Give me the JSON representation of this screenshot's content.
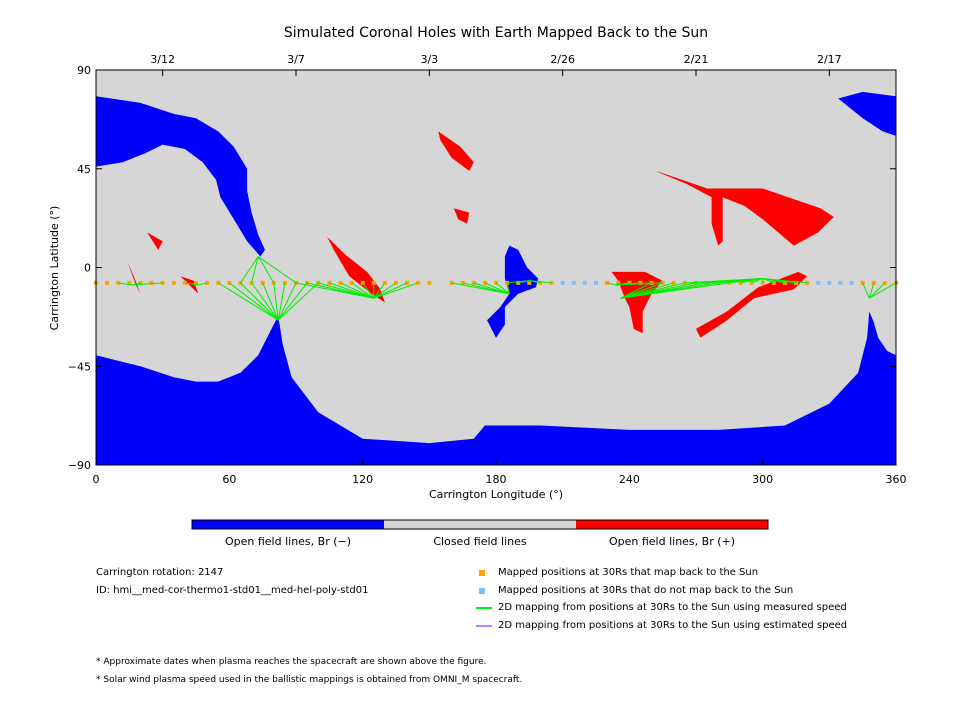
{
  "chart_data": {
    "type": "map",
    "title": "Simulated Coronal Holes with Earth Mapped Back to the Sun",
    "xlabel": "Carrington Longitude (°)",
    "ylabel": "Carrington Latitude (°)",
    "xlim": [
      0,
      360
    ],
    "ylim": [
      -90,
      90
    ],
    "x_ticks": [
      "0",
      "60",
      "120",
      "180",
      "240",
      "300",
      "360"
    ],
    "y_ticks": [
      "90",
      "45",
      "0",
      "−45",
      "−90"
    ],
    "top_axis": {
      "dates": [
        {
          "label": "3/12",
          "lon": 30
        },
        {
          "label": "3/7",
          "lon": 90
        },
        {
          "label": "3/3",
          "lon": 150
        },
        {
          "label": "2/26",
          "lon": 210
        },
        {
          "label": "2/21",
          "lon": 270
        },
        {
          "label": "2/17",
          "lon": 330
        }
      ]
    },
    "colorbar": [
      {
        "label": "Open field lines, Br (−)",
        "color": "#0000ff"
      },
      {
        "label": "Closed field lines",
        "color": "#d6d6d6"
      },
      {
        "label": "Open field lines, Br (+)",
        "color": "#ff0000"
      }
    ],
    "regions": {
      "negative_open": [
        [
          [
            0,
            78
          ],
          [
            20,
            75
          ],
          [
            35,
            70
          ],
          [
            45,
            68
          ],
          [
            55,
            62
          ],
          [
            62,
            55
          ],
          [
            68,
            45
          ],
          [
            68,
            35
          ],
          [
            70,
            25
          ],
          [
            73,
            15
          ],
          [
            76,
            8
          ],
          [
            74,
            5
          ],
          [
            68,
            12
          ],
          [
            62,
            22
          ],
          [
            56,
            32
          ],
          [
            54,
            40
          ],
          [
            48,
            48
          ],
          [
            40,
            54
          ],
          [
            30,
            56
          ],
          [
            22,
            52
          ],
          [
            12,
            48
          ],
          [
            0,
            46
          ]
        ],
        [
          [
            0,
            -40
          ],
          [
            20,
            -45
          ],
          [
            35,
            -50
          ],
          [
            45,
            -52
          ],
          [
            55,
            -52
          ],
          [
            65,
            -48
          ],
          [
            73,
            -40
          ],
          [
            78,
            -30
          ],
          [
            82,
            -22
          ],
          [
            84,
            -35
          ],
          [
            88,
            -50
          ],
          [
            100,
            -66
          ],
          [
            120,
            -78
          ],
          [
            150,
            -80
          ],
          [
            170,
            -78
          ],
          [
            175,
            -72
          ],
          [
            200,
            -72
          ],
          [
            240,
            -74
          ],
          [
            280,
            -74
          ],
          [
            310,
            -72
          ],
          [
            330,
            -62
          ],
          [
            343,
            -48
          ],
          [
            347,
            -32
          ],
          [
            348,
            -20
          ],
          [
            350,
            -25
          ],
          [
            352,
            -32
          ],
          [
            356,
            -38
          ],
          [
            360,
            -40
          ],
          [
            360,
            -90
          ],
          [
            0,
            -90
          ]
        ],
        [
          [
            180,
            -32
          ],
          [
            176,
            -24
          ],
          [
            182,
            -18
          ],
          [
            186,
            -12
          ],
          [
            184,
            -5
          ],
          [
            184,
            5
          ],
          [
            186,
            10
          ],
          [
            190,
            8
          ],
          [
            194,
            0
          ],
          [
            199,
            -5
          ],
          [
            198,
            -9
          ],
          [
            190,
            -12
          ],
          [
            184,
            -18
          ],
          [
            184,
            -26
          ]
        ],
        [
          [
            334,
            77
          ],
          [
            345,
            80
          ],
          [
            360,
            78
          ],
          [
            360,
            60
          ],
          [
            354,
            62
          ],
          [
            345,
            68
          ]
        ]
      ],
      "positive_open": [
        [
          [
            154,
            62
          ],
          [
            164,
            55
          ],
          [
            170,
            48
          ],
          [
            168,
            44
          ],
          [
            160,
            50
          ],
          [
            155,
            58
          ]
        ],
        [
          [
            161,
            27
          ],
          [
            168,
            25
          ],
          [
            167,
            20
          ],
          [
            163,
            22
          ]
        ],
        [
          [
            252,
            44
          ],
          [
            275,
            36
          ],
          [
            300,
            36
          ],
          [
            326,
            27
          ],
          [
            332,
            23
          ],
          [
            325,
            16
          ],
          [
            314,
            10
          ],
          [
            300,
            22
          ],
          [
            292,
            28
          ],
          [
            282,
            32
          ],
          [
            282,
            22
          ],
          [
            282,
            12
          ],
          [
            280,
            10
          ],
          [
            277,
            20
          ],
          [
            277,
            32
          ],
          [
            266,
            38
          ],
          [
            254,
            43
          ]
        ],
        [
          [
            104,
            14
          ],
          [
            112,
            6
          ],
          [
            122,
            -2
          ],
          [
            128,
            -10
          ],
          [
            130,
            -16
          ],
          [
            124,
            -12
          ],
          [
            114,
            -4
          ],
          [
            107,
            8
          ]
        ],
        [
          [
            232,
            -2
          ],
          [
            235,
            -6
          ],
          [
            238,
            -14
          ],
          [
            240,
            -18
          ],
          [
            242,
            -28
          ],
          [
            246,
            -30
          ],
          [
            246,
            -20
          ],
          [
            250,
            -12
          ],
          [
            255,
            -6
          ],
          [
            247,
            -2
          ],
          [
            240,
            -2
          ]
        ],
        [
          [
            298,
            -9
          ],
          [
            316,
            -2
          ],
          [
            320,
            -4
          ],
          [
            314,
            -10
          ],
          [
            296,
            -14
          ],
          [
            284,
            -24
          ],
          [
            272,
            -32
          ],
          [
            270,
            -28
          ],
          [
            284,
            -20
          ]
        ],
        [
          [
            23,
            16
          ],
          [
            28,
            8
          ],
          [
            30,
            12
          ]
        ],
        [
          [
            14,
            3
          ],
          [
            17,
            -4
          ],
          [
            20,
            -12
          ],
          [
            18,
            -8
          ]
        ],
        [
          [
            38,
            -4
          ],
          [
            46,
            -12
          ],
          [
            44,
            -6
          ]
        ]
      ],
      "footpoints": [
        {
          "lon": 16,
          "lat": -8
        },
        {
          "lon": 46,
          "lat": -8
        },
        {
          "lon": 73,
          "lat": 5
        },
        {
          "lon": 82,
          "lat": -24
        },
        {
          "lon": 125,
          "lat": -14
        },
        {
          "lon": 186,
          "lat": -12
        },
        {
          "lon": 195,
          "lat": -6
        },
        {
          "lon": 234,
          "lat": -8
        },
        {
          "lon": 236,
          "lat": -14
        },
        {
          "lon": 300,
          "lat": -5
        },
        {
          "lon": 348,
          "lat": -14
        }
      ]
    },
    "mapped_positions": {
      "latitude": -7,
      "map_back": {
        "color": "#ffa500",
        "lon": [
          0,
          5,
          10,
          15,
          20,
          25,
          30,
          35,
          40,
          45,
          50,
          55,
          60,
          65,
          70,
          75,
          80,
          85,
          90,
          95,
          100,
          105,
          110,
          115,
          120,
          125,
          130,
          135,
          140,
          145,
          150,
          160,
          165,
          170,
          175,
          180,
          185,
          190,
          195,
          200,
          205,
          230,
          235,
          240,
          245,
          250,
          255,
          260,
          265,
          270,
          275,
          280,
          285,
          290,
          295,
          300,
          305,
          310,
          315,
          320,
          345,
          350,
          355,
          360
        ]
      },
      "no_map_back": {
        "color": "#7fbfff",
        "lon": [
          210,
          215,
          220,
          225,
          325,
          330,
          335,
          340
        ]
      }
    },
    "mappings": [
      {
        "footpoint": 0,
        "lons": [
          10,
          20,
          30
        ]
      },
      {
        "footpoint": 1,
        "lons": [
          40,
          45,
          50
        ]
      },
      {
        "footpoint": 2,
        "lons": [
          65,
          70,
          80,
          90
        ]
      },
      {
        "footpoint": 3,
        "lons": [
          55,
          60,
          65,
          70,
          75,
          80,
          85,
          90,
          95,
          100
        ]
      },
      {
        "footpoint": 4,
        "lons": [
          90,
          95,
          100,
          105,
          110,
          115,
          120,
          125,
          130,
          135,
          140,
          145
        ]
      },
      {
        "footpoint": 5,
        "lons": [
          160,
          165,
          170,
          175,
          180,
          185
        ]
      },
      {
        "footpoint": 6,
        "lons": [
          185,
          190,
          195,
          200,
          205
        ]
      },
      {
        "footpoint": 7,
        "lons": [
          230,
          235,
          240,
          245,
          250,
          255
        ]
      },
      {
        "footpoint": 8,
        "lons": [
          250,
          255,
          260,
          265,
          270,
          275,
          280,
          285
        ]
      },
      {
        "footpoint": 9,
        "lons": [
          265,
          270,
          275,
          280,
          285,
          290,
          295,
          300,
          305,
          310,
          315,
          320
        ]
      },
      {
        "footpoint": 10,
        "lons": [
          345,
          350,
          355,
          360
        ]
      }
    ],
    "mapping_color": "#00ee00"
  },
  "info": {
    "rotation": "Carrington rotation: 2147",
    "id": "ID: hmi__med-cor-thermo1-std01__med-hel-poly-std01"
  },
  "legend": {
    "map_back": {
      "label": "Mapped positions at 30Rs that map back to the Sun",
      "color": "#ffa500"
    },
    "no_map_back": {
      "label": "Mapped positions at 30Rs that do not map back to the Sun",
      "color": "#7fbfff"
    },
    "measured": {
      "label": "2D mapping from positions at 30Rs to the Sun using measured speed",
      "color": "#00ee00"
    },
    "estimated": {
      "label": "2D mapping from positions at 30Rs to the Sun using estimated speed",
      "color": "#c080ff"
    }
  },
  "notes": [
    "* Approximate dates when plasma reaches the spacecraft are shown above the figure.",
    "* Solar wind plasma speed used in the ballistic mappings is obtained from OMNI_M spacecraft."
  ]
}
